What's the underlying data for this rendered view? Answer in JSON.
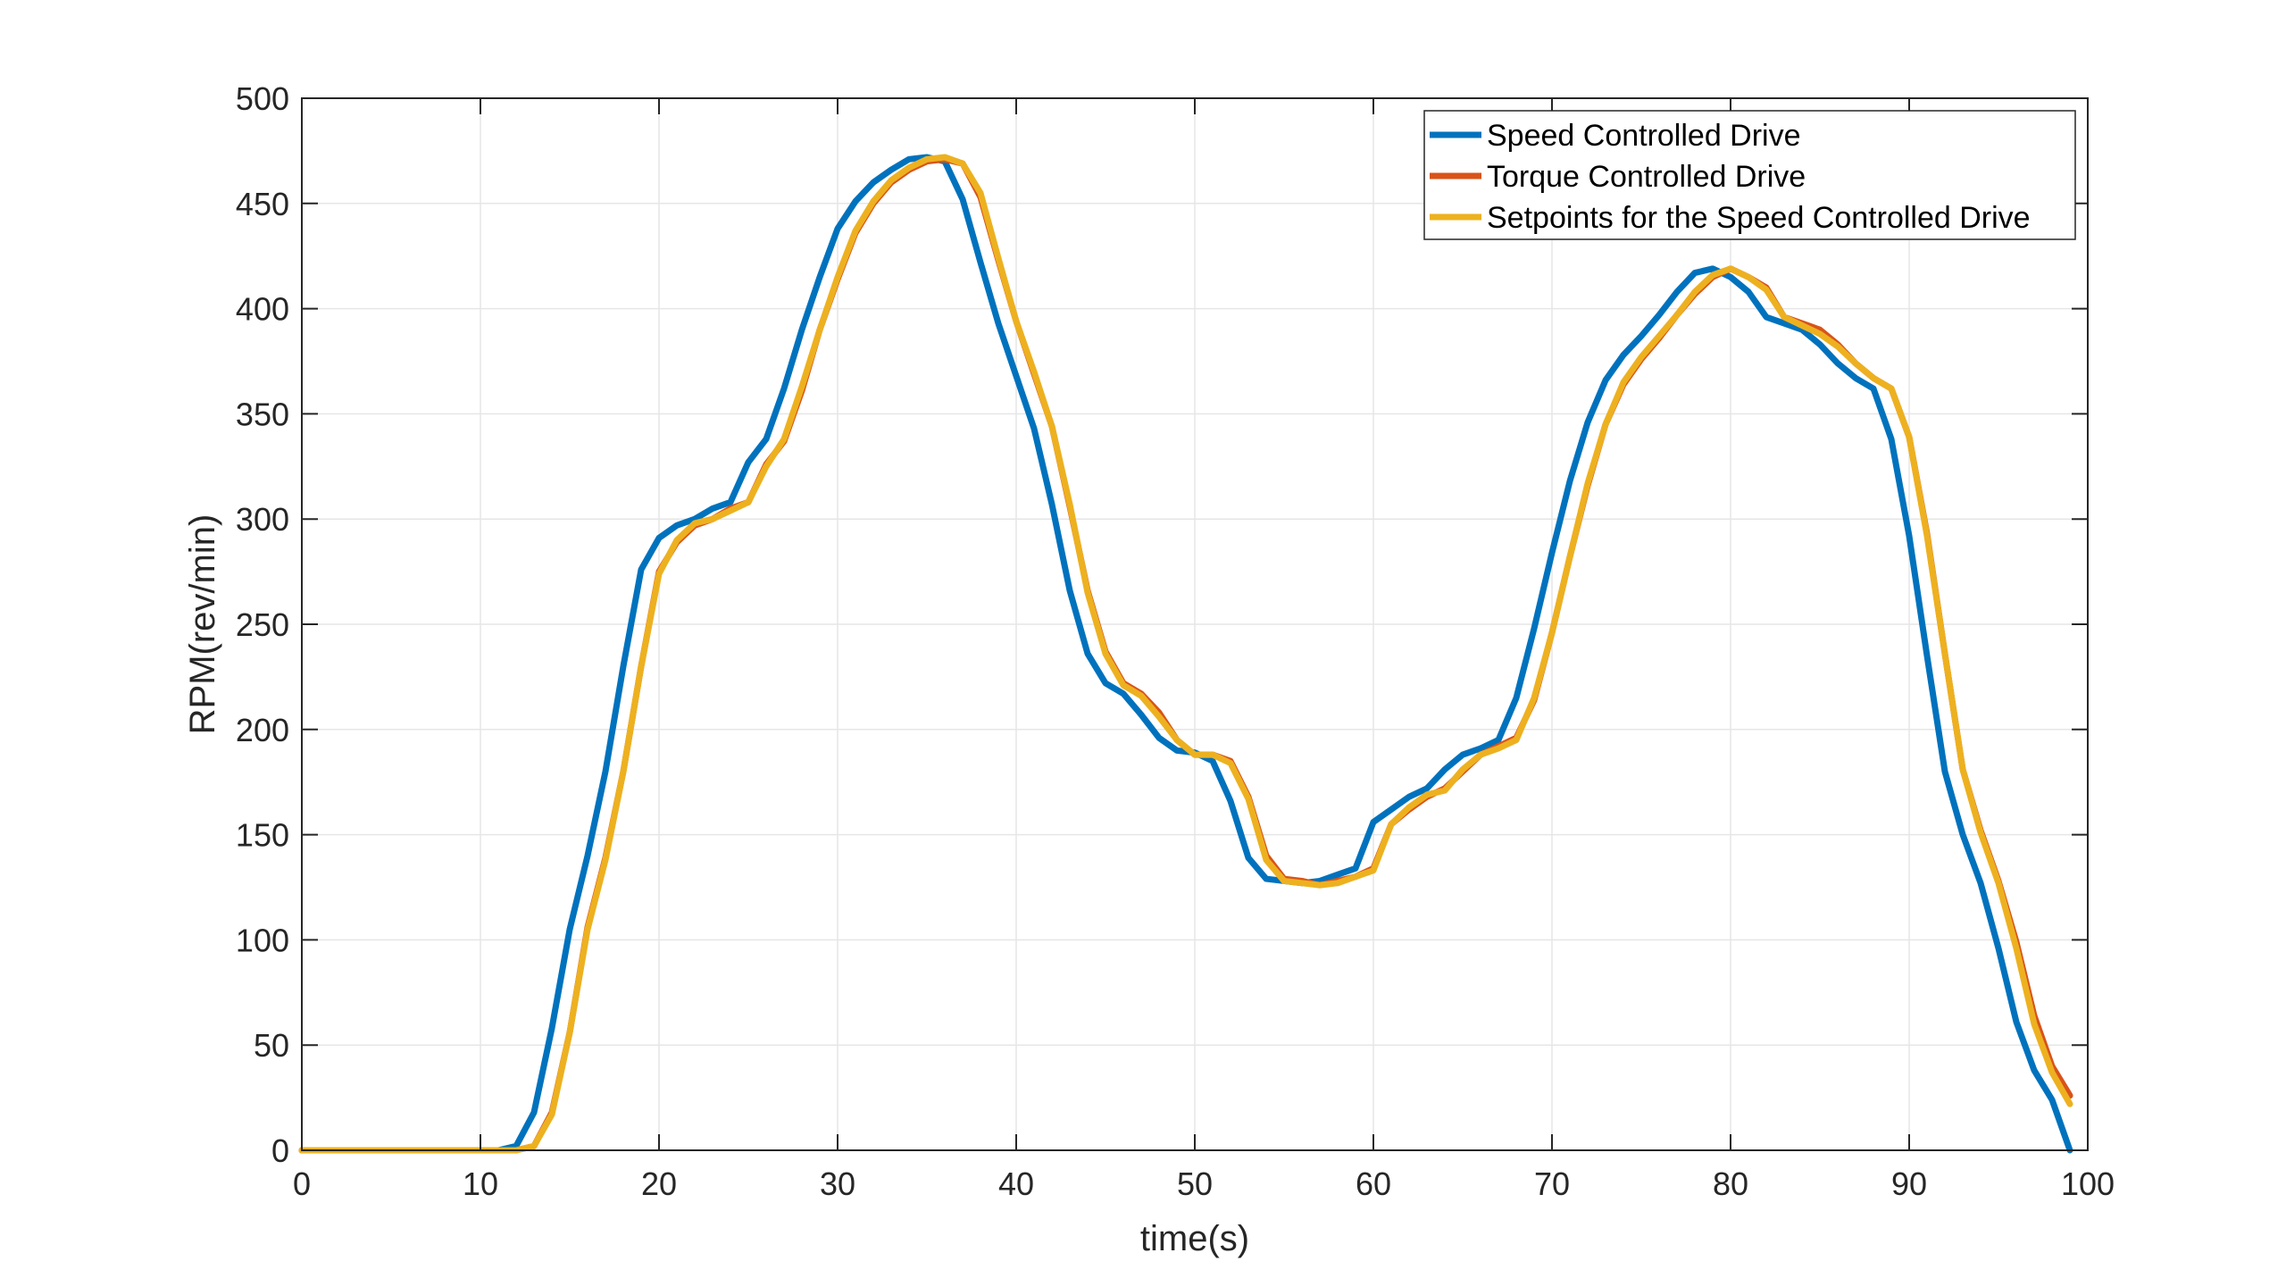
{
  "chart_data": {
    "type": "line",
    "title": "",
    "xlabel": "time(s)",
    "ylabel": "RPM(rev/min)",
    "xlim": [
      0,
      100
    ],
    "ylim": [
      0,
      500
    ],
    "x_ticks": [
      0,
      10,
      20,
      30,
      40,
      50,
      60,
      70,
      80,
      90,
      100
    ],
    "y_ticks": [
      0,
      50,
      100,
      150,
      200,
      250,
      300,
      350,
      400,
      450,
      500
    ],
    "x_tick_labels": [
      "0",
      "10",
      "20",
      "30",
      "40",
      "50",
      "60",
      "70",
      "80",
      "90",
      "100"
    ],
    "y_tick_labels": [
      "0",
      "50",
      "100",
      "150",
      "200",
      "250",
      "300",
      "350",
      "400",
      "450",
      "500"
    ],
    "grid": true,
    "legend_position": "top-right",
    "series": [
      {
        "name": "Speed Controlled Drive",
        "color": "#0072BD",
        "points": [
          [
            0,
            0
          ],
          [
            1,
            0
          ],
          [
            2,
            0
          ],
          [
            3,
            0
          ],
          [
            4,
            0
          ],
          [
            5,
            0
          ],
          [
            6,
            0
          ],
          [
            7,
            0
          ],
          [
            8,
            0
          ],
          [
            9,
            0
          ],
          [
            10,
            0
          ],
          [
            11,
            0
          ],
          [
            12,
            2
          ],
          [
            13,
            18
          ],
          [
            14,
            58
          ],
          [
            15,
            105
          ],
          [
            16,
            140
          ],
          [
            17,
            180
          ],
          [
            18,
            230
          ],
          [
            19,
            276
          ],
          [
            20,
            291
          ],
          [
            21,
            297
          ],
          [
            22,
            300
          ],
          [
            23,
            305
          ],
          [
            24,
            308
          ],
          [
            25,
            327
          ],
          [
            26,
            338
          ],
          [
            27,
            362
          ],
          [
            28,
            390
          ],
          [
            29,
            415
          ],
          [
            30,
            438
          ],
          [
            31,
            451
          ],
          [
            32,
            460
          ],
          [
            33,
            466
          ],
          [
            34,
            471
          ],
          [
            35,
            472
          ],
          [
            36,
            470
          ],
          [
            37,
            452
          ],
          [
            38,
            422
          ],
          [
            39,
            393
          ],
          [
            40,
            368
          ],
          [
            41,
            343
          ],
          [
            42,
            307
          ],
          [
            43,
            266
          ],
          [
            44,
            236
          ],
          [
            45,
            222
          ],
          [
            46,
            217
          ],
          [
            47,
            207
          ],
          [
            48,
            196
          ],
          [
            49,
            190
          ],
          [
            50,
            189
          ],
          [
            51,
            185
          ],
          [
            52,
            166
          ],
          [
            53,
            139
          ],
          [
            54,
            129
          ],
          [
            55,
            128
          ],
          [
            56,
            127
          ],
          [
            57,
            128
          ],
          [
            58,
            131
          ],
          [
            59,
            134
          ],
          [
            60,
            156
          ],
          [
            61,
            162
          ],
          [
            62,
            168
          ],
          [
            63,
            172
          ],
          [
            64,
            181
          ],
          [
            65,
            188
          ],
          [
            66,
            191
          ],
          [
            67,
            195
          ],
          [
            68,
            215
          ],
          [
            69,
            248
          ],
          [
            70,
            284
          ],
          [
            71,
            318
          ],
          [
            72,
            346
          ],
          [
            73,
            366
          ],
          [
            74,
            378
          ],
          [
            75,
            387
          ],
          [
            76,
            397
          ],
          [
            77,
            408
          ],
          [
            78,
            417
          ],
          [
            79,
            419
          ],
          [
            80,
            415
          ],
          [
            81,
            408
          ],
          [
            82,
            396
          ],
          [
            83,
            393
          ],
          [
            84,
            390
          ],
          [
            85,
            383
          ],
          [
            86,
            374
          ],
          [
            87,
            367
          ],
          [
            88,
            362
          ],
          [
            89,
            338
          ],
          [
            90,
            292
          ],
          [
            91,
            235
          ],
          [
            92,
            180
          ],
          [
            93,
            150
          ],
          [
            94,
            127
          ],
          [
            95,
            96
          ],
          [
            96,
            61
          ],
          [
            97,
            38
          ],
          [
            98,
            24
          ],
          [
            99,
            0
          ]
        ]
      },
      {
        "name": "Torque Controlled Drive",
        "color": "#D95319",
        "points": [
          [
            0,
            0
          ],
          [
            1,
            0
          ],
          [
            2,
            0
          ],
          [
            3,
            0
          ],
          [
            4,
            0
          ],
          [
            5,
            0
          ],
          [
            6,
            0
          ],
          [
            7,
            0
          ],
          [
            8,
            0
          ],
          [
            9,
            0
          ],
          [
            10,
            0
          ],
          [
            11,
            0
          ],
          [
            12,
            0
          ],
          [
            13,
            2
          ],
          [
            14,
            18
          ],
          [
            15,
            56
          ],
          [
            16,
            106
          ],
          [
            17,
            139
          ],
          [
            18,
            180
          ],
          [
            19,
            230
          ],
          [
            20,
            275
          ],
          [
            21,
            289
          ],
          [
            22,
            297
          ],
          [
            23,
            300
          ],
          [
            24,
            305
          ],
          [
            25,
            308
          ],
          [
            26,
            326
          ],
          [
            27,
            337
          ],
          [
            28,
            361
          ],
          [
            29,
            390
          ],
          [
            30,
            414
          ],
          [
            31,
            436
          ],
          [
            32,
            450
          ],
          [
            33,
            460
          ],
          [
            34,
            466
          ],
          [
            35,
            470
          ],
          [
            36,
            471
          ],
          [
            37,
            469
          ],
          [
            38,
            453
          ],
          [
            39,
            423
          ],
          [
            40,
            394
          ],
          [
            41,
            369
          ],
          [
            42,
            344
          ],
          [
            43,
            306
          ],
          [
            44,
            266
          ],
          [
            45,
            237
          ],
          [
            46,
            222
          ],
          [
            47,
            217
          ],
          [
            48,
            208
          ],
          [
            49,
            195
          ],
          [
            50,
            188
          ],
          [
            51,
            188
          ],
          [
            52,
            185
          ],
          [
            53,
            168
          ],
          [
            54,
            140
          ],
          [
            55,
            129
          ],
          [
            56,
            128
          ],
          [
            57,
            126
          ],
          [
            58,
            128
          ],
          [
            59,
            130
          ],
          [
            60,
            134
          ],
          [
            61,
            155
          ],
          [
            62,
            162
          ],
          [
            63,
            168
          ],
          [
            64,
            172
          ],
          [
            65,
            180
          ],
          [
            66,
            188
          ],
          [
            67,
            192
          ],
          [
            68,
            196
          ],
          [
            69,
            214
          ],
          [
            70,
            246
          ],
          [
            71,
            282
          ],
          [
            72,
            316
          ],
          [
            73,
            345
          ],
          [
            74,
            364
          ],
          [
            75,
            376
          ],
          [
            76,
            386
          ],
          [
            77,
            397
          ],
          [
            78,
            407
          ],
          [
            79,
            415
          ],
          [
            80,
            419
          ],
          [
            81,
            415
          ],
          [
            82,
            410
          ],
          [
            83,
            396
          ],
          [
            84,
            393
          ],
          [
            85,
            390
          ],
          [
            86,
            383
          ],
          [
            87,
            374
          ],
          [
            88,
            367
          ],
          [
            89,
            362
          ],
          [
            90,
            339
          ],
          [
            91,
            293
          ],
          [
            92,
            236
          ],
          [
            93,
            181
          ],
          [
            94,
            152
          ],
          [
            95,
            128
          ],
          [
            96,
            99
          ],
          [
            97,
            64
          ],
          [
            98,
            40
          ],
          [
            99,
            26
          ]
        ]
      },
      {
        "name": "Setpoints for the Speed Controlled Drive",
        "color": "#EDB120",
        "points": [
          [
            0,
            0
          ],
          [
            1,
            0
          ],
          [
            2,
            0
          ],
          [
            3,
            0
          ],
          [
            4,
            0
          ],
          [
            5,
            0
          ],
          [
            6,
            0
          ],
          [
            7,
            0
          ],
          [
            8,
            0
          ],
          [
            9,
            0
          ],
          [
            10,
            0
          ],
          [
            11,
            0
          ],
          [
            12,
            0
          ],
          [
            13,
            2
          ],
          [
            14,
            17
          ],
          [
            15,
            56
          ],
          [
            16,
            105
          ],
          [
            17,
            138
          ],
          [
            18,
            180
          ],
          [
            19,
            230
          ],
          [
            20,
            274
          ],
          [
            21,
            290
          ],
          [
            22,
            298
          ],
          [
            23,
            300
          ],
          [
            24,
            304
          ],
          [
            25,
            308
          ],
          [
            26,
            325
          ],
          [
            27,
            338
          ],
          [
            28,
            363
          ],
          [
            29,
            390
          ],
          [
            30,
            415
          ],
          [
            31,
            437
          ],
          [
            32,
            451
          ],
          [
            33,
            461
          ],
          [
            34,
            467
          ],
          [
            35,
            471
          ],
          [
            36,
            472
          ],
          [
            37,
            469
          ],
          [
            38,
            455
          ],
          [
            39,
            424
          ],
          [
            40,
            394
          ],
          [
            41,
            370
          ],
          [
            42,
            344
          ],
          [
            43,
            307
          ],
          [
            44,
            265
          ],
          [
            45,
            236
          ],
          [
            46,
            221
          ],
          [
            47,
            216
          ],
          [
            48,
            206
          ],
          [
            49,
            195
          ],
          [
            50,
            188
          ],
          [
            51,
            188
          ],
          [
            52,
            184
          ],
          [
            53,
            167
          ],
          [
            54,
            138
          ],
          [
            55,
            128
          ],
          [
            56,
            127
          ],
          [
            57,
            126
          ],
          [
            58,
            127
          ],
          [
            59,
            130
          ],
          [
            60,
            133
          ],
          [
            61,
            155
          ],
          [
            62,
            163
          ],
          [
            63,
            169
          ],
          [
            64,
            171
          ],
          [
            65,
            181
          ],
          [
            66,
            188
          ],
          [
            67,
            191
          ],
          [
            68,
            195
          ],
          [
            69,
            215
          ],
          [
            70,
            246
          ],
          [
            71,
            282
          ],
          [
            72,
            317
          ],
          [
            73,
            345
          ],
          [
            74,
            365
          ],
          [
            75,
            377
          ],
          [
            76,
            387
          ],
          [
            77,
            397
          ],
          [
            78,
            408
          ],
          [
            79,
            416
          ],
          [
            80,
            419
          ],
          [
            81,
            415
          ],
          [
            82,
            409
          ],
          [
            83,
            396
          ],
          [
            84,
            392
          ],
          [
            85,
            388
          ],
          [
            86,
            382
          ],
          [
            87,
            374
          ],
          [
            88,
            367
          ],
          [
            89,
            362
          ],
          [
            90,
            339
          ],
          [
            91,
            292
          ],
          [
            92,
            236
          ],
          [
            93,
            181
          ],
          [
            94,
            151
          ],
          [
            95,
            127
          ],
          [
            96,
            96
          ],
          [
            97,
            60
          ],
          [
            98,
            37
          ],
          [
            99,
            22
          ]
        ]
      }
    ]
  }
}
